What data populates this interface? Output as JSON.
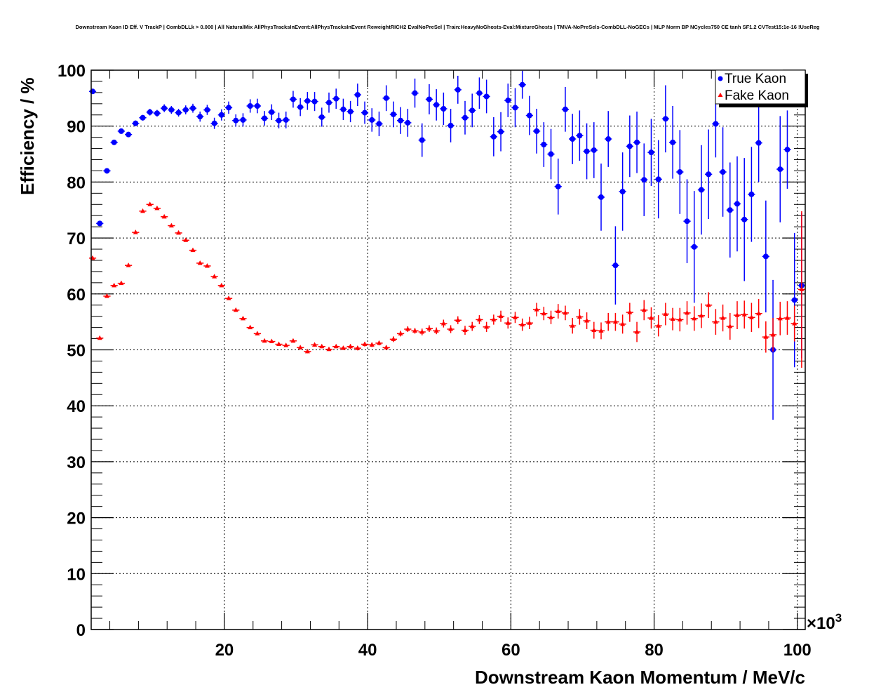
{
  "chart_data": {
    "type": "scatter",
    "title": "Downstream Kaon ID Eff. V TrackP | CombDLLk > 0.000 | All NaturalMix AllPhysTracksInEvent:AllPhysTracksInEvent ReweightRICH2 EvalNoPreSel | Train:HeavyNoGhosts-Eval:MixtureGhosts | TMVA-NoPreSels-CombDLL-NoGECs | MLP Norm BP NCycles750 CE tanh SF1.2 CVTest15:1e-16 !UseReg",
    "xlabel": "Downstream Kaon Momentum / MeV/c",
    "ylabel": "Efficiency / %",
    "x_multiplier_label": "×10",
    "x_multiplier_exp": "3",
    "xlim": [
      1.4,
      101.1
    ],
    "ylim": [
      0,
      100
    ],
    "xticks": [
      "20",
      "40",
      "60",
      "80",
      "100"
    ],
    "yticks": [
      "0",
      "10",
      "20",
      "30",
      "40",
      "50",
      "60",
      "70",
      "80",
      "90",
      "100"
    ],
    "grid": true,
    "legend_position": "top-right",
    "x_start": 1.6,
    "x_step": 1.0,
    "series": [
      {
        "name": "True Kaon",
        "color": "#0000ff",
        "marker": "circle",
        "values": [
          96.2,
          72.6,
          82.0,
          87.1,
          89.1,
          88.5,
          90.5,
          91.5,
          92.5,
          92.3,
          93.2,
          92.9,
          92.4,
          92.9,
          93.2,
          91.7,
          92.9,
          90.5,
          92.0,
          93.3,
          91.0,
          91.1,
          93.6,
          93.6,
          91.4,
          92.5,
          91.0,
          91.1,
          94.8,
          93.4,
          94.5,
          94.4,
          91.6,
          94.2,
          94.9,
          93.0,
          92.6,
          95.6,
          92.4,
          91.1,
          90.4,
          95.0,
          92.1,
          91.0,
          90.6,
          95.9,
          87.5,
          94.8,
          93.8,
          93.1,
          90.1,
          96.5,
          91.5,
          92.8,
          95.9,
          95.3,
          88.1,
          89.0,
          94.6,
          93.3,
          97.4,
          91.9,
          89.1,
          86.7,
          85.0,
          79.2,
          93.0,
          87.7,
          88.3,
          85.5,
          85.7,
          77.3,
          87.7,
          65.1,
          78.3,
          86.4,
          87.1,
          80.4,
          85.3,
          80.5,
          91.3,
          87.1,
          81.8,
          73.0,
          68.4,
          78.6,
          81.4,
          90.4,
          81.8,
          75.0,
          76.1,
          73.3,
          77.8,
          87.0,
          66.7,
          50.0,
          82.3,
          85.8,
          58.9,
          61.5
        ],
        "errors": [
          0.4,
          0.4,
          0.4,
          0.4,
          0.4,
          0.4,
          0.5,
          0.5,
          0.6,
          0.6,
          0.7,
          0.7,
          0.7,
          0.8,
          0.8,
          0.9,
          0.9,
          1.0,
          1.0,
          1.1,
          1.1,
          1.2,
          1.2,
          1.3,
          1.3,
          1.4,
          1.4,
          1.5,
          1.5,
          1.6,
          1.6,
          1.7,
          1.7,
          1.8,
          1.8,
          1.9,
          1.9,
          2.0,
          2.0,
          2.1,
          2.2,
          2.3,
          2.3,
          2.4,
          2.5,
          2.6,
          3.0,
          2.7,
          2.8,
          2.9,
          3.0,
          2.5,
          3.0,
          3.0,
          2.8,
          3.0,
          3.5,
          3.5,
          3.0,
          3.5,
          2.5,
          3.5,
          4.0,
          4.0,
          4.5,
          5.0,
          4.0,
          4.5,
          4.5,
          5.0,
          5.0,
          6.0,
          5.0,
          7.0,
          7.0,
          5.5,
          5.5,
          6.5,
          6.0,
          7.0,
          6.0,
          6.5,
          7.5,
          7.5,
          10.0,
          8.0,
          8.0,
          6.0,
          8.0,
          8.5,
          8.5,
          11.0,
          8.5,
          7.0,
          10.0,
          12.5,
          9.5,
          7.0,
          12.0,
          13.0
        ]
      },
      {
        "name": "Fake Kaon",
        "color": "#ff0000",
        "marker": "triangle",
        "values": [
          66.4,
          52.1,
          59.6,
          61.5,
          61.9,
          65.1,
          71.0,
          74.8,
          76.0,
          75.3,
          73.8,
          72.2,
          70.9,
          69.6,
          67.8,
          65.5,
          65.0,
          63.1,
          61.5,
          59.2,
          57.1,
          55.6,
          54.0,
          52.9,
          51.6,
          51.5,
          51.0,
          50.8,
          51.6,
          50.4,
          49.7,
          50.9,
          50.6,
          50.1,
          50.6,
          50.3,
          50.6,
          50.3,
          51.0,
          50.9,
          51.2,
          50.4,
          51.9,
          52.9,
          53.7,
          53.4,
          53.2,
          53.8,
          53.4,
          54.7,
          53.7,
          55.3,
          53.5,
          54.2,
          55.4,
          54.1,
          55.4,
          56.0,
          54.8,
          55.8,
          54.5,
          54.8,
          57.2,
          56.5,
          55.8,
          56.9,
          56.6,
          54.3,
          55.9,
          55.2,
          53.5,
          53.4,
          55.0,
          55.0,
          54.6,
          56.7,
          53.2,
          57.1,
          55.7,
          54.3,
          56.4,
          55.5,
          55.4,
          56.6,
          55.6,
          56.1,
          58.0,
          55.0,
          55.7,
          54.2,
          56.2,
          56.3,
          55.8,
          56.5,
          52.3,
          52.7,
          55.6,
          55.7,
          54.7,
          60.8
        ],
        "errors": [
          0.2,
          0.2,
          0.2,
          0.2,
          0.2,
          0.2,
          0.2,
          0.2,
          0.2,
          0.2,
          0.2,
          0.2,
          0.2,
          0.2,
          0.2,
          0.2,
          0.2,
          0.2,
          0.2,
          0.2,
          0.2,
          0.2,
          0.2,
          0.2,
          0.2,
          0.2,
          0.2,
          0.3,
          0.3,
          0.3,
          0.3,
          0.3,
          0.3,
          0.3,
          0.3,
          0.3,
          0.4,
          0.4,
          0.4,
          0.4,
          0.4,
          0.4,
          0.5,
          0.5,
          0.5,
          0.5,
          0.6,
          0.6,
          0.6,
          0.7,
          0.7,
          0.7,
          0.8,
          0.8,
          0.8,
          0.9,
          0.9,
          1.0,
          1.0,
          1.0,
          1.1,
          1.1,
          1.2,
          1.2,
          1.2,
          1.3,
          1.3,
          1.4,
          1.4,
          1.5,
          1.5,
          1.5,
          1.6,
          1.6,
          1.7,
          1.7,
          1.8,
          1.8,
          1.9,
          1.9,
          2.0,
          2.0,
          2.1,
          2.1,
          2.2,
          2.2,
          2.3,
          2.3,
          2.4,
          2.4,
          2.5,
          2.5,
          2.6,
          2.6,
          2.8,
          3.0,
          3.0,
          3.0,
          3.2,
          14.0
        ]
      }
    ]
  }
}
